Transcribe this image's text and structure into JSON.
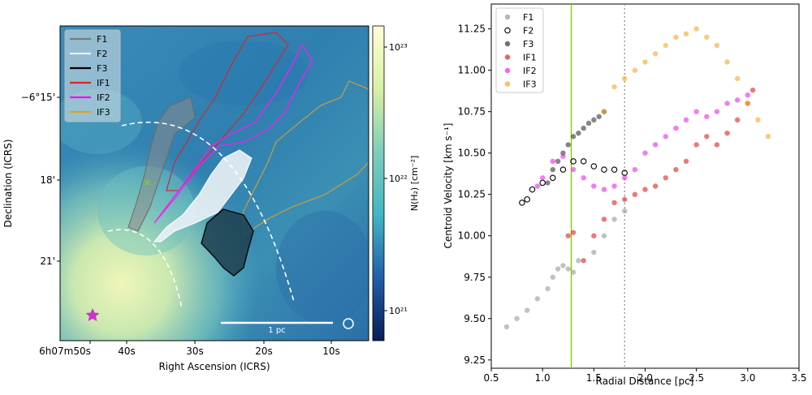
{
  "left_panel": {
    "xlabel": "Right Ascension (ICRS)",
    "ylabel": "Declination (ICRS)",
    "xticks": [
      "6h07m50s",
      "40s",
      "30s",
      "20s",
      "10s"
    ],
    "yticks": [
      "−6°15'",
      "18'",
      "21'"
    ],
    "legend": [
      {
        "label": "F1",
        "color": "#7a7a7a"
      },
      {
        "label": "F2",
        "color": "#f0f0f0"
      },
      {
        "label": "F3",
        "color": "#000000"
      },
      {
        "label": "IF1",
        "color": "#d62728"
      },
      {
        "label": "IF2",
        "color": "#ff00ff"
      },
      {
        "label": "IF3",
        "color": "#e0a020"
      }
    ],
    "colorbar": {
      "label": "N(H₂) [cm⁻²]",
      "ticks": [
        "10²³",
        "10²²",
        "10²¹"
      ]
    },
    "scalebar_label": "1 pc",
    "star_color": "#cc33cc"
  },
  "chart_data": {
    "type": "scatter",
    "xlabel": "Radial Distance [pc]",
    "ylabel": "Centroid Velocity [km s⁻¹]",
    "xlim": [
      0.5,
      3.5
    ],
    "ylim": [
      9.2,
      11.4
    ],
    "xticks": [
      0.5,
      1.0,
      1.5,
      2.0,
      2.5,
      3.0,
      3.5
    ],
    "yticks": [
      9.25,
      9.5,
      9.75,
      10.0,
      10.25,
      10.5,
      10.75,
      11.0,
      11.25
    ],
    "grid": false,
    "legend_position": "top-left",
    "vlines": [
      {
        "x": 1.28,
        "color": "#7fd000",
        "style": "solid"
      },
      {
        "x": 1.8,
        "color": "#888888",
        "style": "dotted"
      }
    ],
    "series": [
      {
        "name": "F1",
        "color": "#999999",
        "filled": true,
        "x": [
          0.65,
          0.75,
          0.85,
          0.95,
          1.05,
          1.1,
          1.15,
          1.2,
          1.25,
          1.3,
          1.35,
          1.5,
          1.6,
          1.7,
          1.8
        ],
        "y": [
          9.45,
          9.5,
          9.55,
          9.62,
          9.68,
          9.75,
          9.8,
          9.82,
          9.8,
          9.78,
          9.85,
          9.9,
          10.0,
          10.1,
          10.15
        ]
      },
      {
        "name": "F2",
        "color": "#000000",
        "filled": false,
        "x": [
          0.8,
          0.85,
          0.9,
          1.0,
          1.1,
          1.2,
          1.3,
          1.4,
          1.5,
          1.6,
          1.7,
          1.8
        ],
        "y": [
          10.2,
          10.22,
          10.28,
          10.32,
          10.35,
          10.4,
          10.45,
          10.45,
          10.42,
          10.4,
          10.4,
          10.38
        ]
      },
      {
        "name": "F3",
        "color": "#333333",
        "filled": true,
        "x": [
          1.05,
          1.1,
          1.15,
          1.2,
          1.25,
          1.3,
          1.35,
          1.4,
          1.45,
          1.5,
          1.55,
          1.6
        ],
        "y": [
          10.32,
          10.4,
          10.45,
          10.5,
          10.55,
          10.6,
          10.62,
          10.65,
          10.68,
          10.7,
          10.72,
          10.75
        ]
      },
      {
        "name": "IF1",
        "color": "#e02020",
        "filled": true,
        "x": [
          1.25,
          1.3,
          1.4,
          1.5,
          1.6,
          1.7,
          1.8,
          1.9,
          2.0,
          2.1,
          2.2,
          2.3,
          2.4,
          2.5,
          2.6,
          2.7,
          2.8,
          2.9,
          3.0,
          3.05
        ],
        "y": [
          10.0,
          10.02,
          9.85,
          10.0,
          10.1,
          10.2,
          10.22,
          10.25,
          10.28,
          10.3,
          10.35,
          10.4,
          10.45,
          10.55,
          10.6,
          10.55,
          10.62,
          10.7,
          10.8,
          10.88
        ]
      },
      {
        "name": "IF2",
        "color": "#ee22ee",
        "filled": true,
        "x": [
          0.95,
          1.0,
          1.1,
          1.2,
          1.3,
          1.4,
          1.5,
          1.6,
          1.7,
          1.8,
          1.9,
          2.0,
          2.1,
          2.2,
          2.3,
          2.4,
          2.5,
          2.6,
          2.7,
          2.8,
          2.9,
          3.0
        ],
        "y": [
          10.3,
          10.35,
          10.45,
          10.48,
          10.4,
          10.35,
          10.3,
          10.28,
          10.3,
          10.35,
          10.4,
          10.5,
          10.55,
          10.6,
          10.65,
          10.7,
          10.75,
          10.72,
          10.75,
          10.8,
          10.82,
          10.85
        ]
      },
      {
        "name": "IF3",
        "color": "#f5a623",
        "filled": true,
        "x": [
          1.6,
          1.7,
          1.8,
          1.9,
          2.0,
          2.1,
          2.2,
          2.3,
          2.4,
          2.5,
          2.6,
          2.7,
          2.8,
          2.9,
          3.0,
          3.1,
          3.2
        ],
        "y": [
          10.75,
          10.9,
          10.95,
          11.0,
          11.05,
          11.1,
          11.15,
          11.2,
          11.22,
          11.25,
          11.2,
          11.15,
          11.05,
          10.95,
          10.8,
          10.7,
          10.6
        ]
      }
    ]
  }
}
